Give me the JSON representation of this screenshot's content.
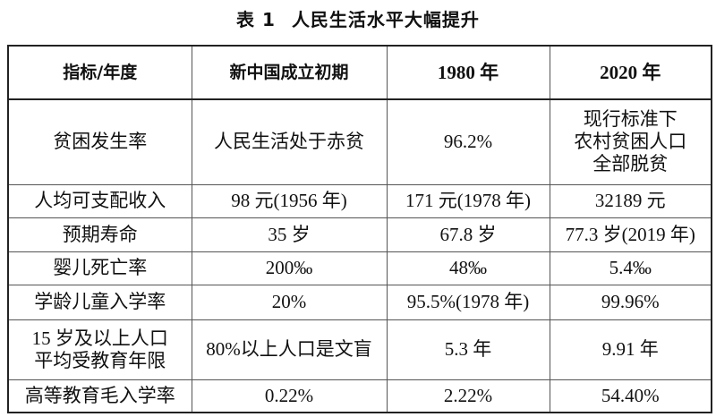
{
  "title": {
    "label": "表 1",
    "text": "人民生活水平大幅提升"
  },
  "headers": [
    "指标/年度",
    "新中国成立初期",
    "1980 年",
    "2020 年"
  ],
  "rows": [
    {
      "indicator": [
        "贫困发生率"
      ],
      "early": [
        "人民生活处于赤贫"
      ],
      "y1980": [
        "96.2%"
      ],
      "y2020": [
        "现行标准下",
        "农村贫困人口",
        "全部脱贫"
      ]
    },
    {
      "indicator": [
        "人均可支配收入"
      ],
      "early": [
        "98 元(1956 年)"
      ],
      "y1980": [
        "171 元(1978 年)"
      ],
      "y2020": [
        "32189 元"
      ]
    },
    {
      "indicator": [
        "预期寿命"
      ],
      "early": [
        "35 岁"
      ],
      "y1980": [
        "67.8 岁"
      ],
      "y2020": [
        "77.3 岁(2019 年)"
      ]
    },
    {
      "indicator": [
        "婴儿死亡率"
      ],
      "early": [
        "200‰"
      ],
      "y1980": [
        "48‰"
      ],
      "y2020": [
        "5.4‰"
      ]
    },
    {
      "indicator": [
        "学龄儿童入学率"
      ],
      "early": [
        "20%"
      ],
      "y1980": [
        "95.5%(1978 年)"
      ],
      "y2020": [
        "99.96%"
      ]
    },
    {
      "indicator": [
        "15 岁及以上人口",
        "平均受教育年限"
      ],
      "early": [
        "80%以上人口是文盲"
      ],
      "y1980": [
        "5.3 年"
      ],
      "y2020": [
        "9.91 年"
      ]
    },
    {
      "indicator": [
        "高等教育毛入学率"
      ],
      "early": [
        "0.22%"
      ],
      "y1980": [
        "2.22%"
      ],
      "y2020": [
        "54.40%"
      ]
    }
  ]
}
